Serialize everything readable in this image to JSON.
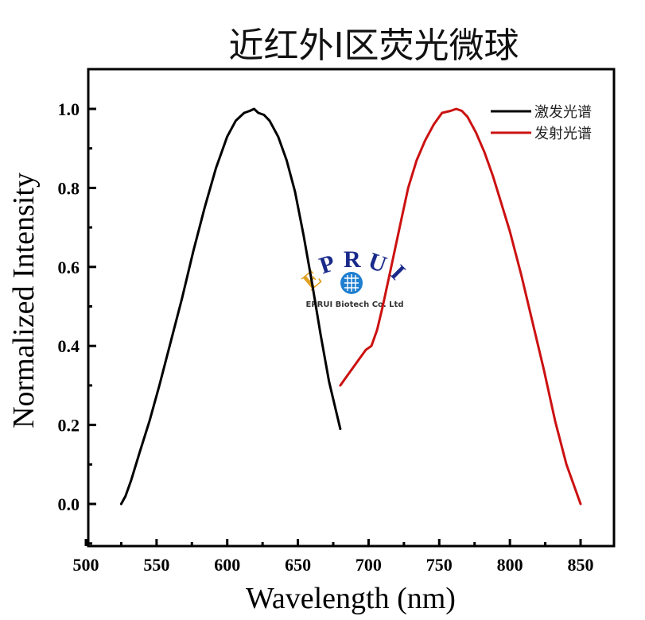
{
  "chart_data": {
    "type": "line",
    "title": "近红外I区荧光微球",
    "xlabel": "Wavelength (nm)",
    "ylabel": "Normalized Intensity",
    "xlim": [
      500,
      880
    ],
    "ylim": [
      -0.1,
      1.1
    ],
    "xticks": [
      500,
      550,
      600,
      650,
      700,
      750,
      800,
      850
    ],
    "xtick_labels": [
      "500",
      "550",
      "600",
      "650",
      "700",
      "750",
      "800",
      "850"
    ],
    "yticks": [
      0.0,
      0.2,
      0.4,
      0.6,
      0.8,
      1.0
    ],
    "ytick_labels": [
      "0.0",
      "0.2",
      "0.4",
      "0.6",
      "0.8",
      "1.0"
    ],
    "grid": false,
    "legend_position": "top-right",
    "series": [
      {
        "name": "激发光谱",
        "color": "#000000",
        "x": [
          525,
          528,
          532,
          538,
          545,
          552,
          560,
          568,
          576,
          584,
          592,
          600,
          606,
          612,
          616,
          619,
          622,
          626,
          630,
          636,
          642,
          648,
          654,
          660,
          666,
          672,
          676,
          680
        ],
        "y": [
          0.0,
          0.02,
          0.06,
          0.13,
          0.21,
          0.3,
          0.41,
          0.52,
          0.64,
          0.75,
          0.85,
          0.93,
          0.97,
          0.99,
          0.995,
          1.0,
          0.99,
          0.985,
          0.97,
          0.93,
          0.87,
          0.79,
          0.68,
          0.56,
          0.43,
          0.31,
          0.25,
          0.19
        ]
      },
      {
        "name": "发射光谱",
        "color": "#cc1111",
        "x": [
          680,
          686,
          692,
          698,
          702,
          706,
          710,
          716,
          722,
          728,
          734,
          740,
          746,
          752,
          758,
          762,
          766,
          770,
          776,
          782,
          788,
          794,
          800,
          808,
          816,
          824,
          832,
          840,
          846,
          850
        ],
        "y": [
          0.3,
          0.33,
          0.36,
          0.39,
          0.4,
          0.44,
          0.5,
          0.6,
          0.7,
          0.8,
          0.87,
          0.92,
          0.96,
          0.99,
          0.995,
          1.0,
          0.995,
          0.98,
          0.94,
          0.89,
          0.83,
          0.76,
          0.69,
          0.58,
          0.46,
          0.34,
          0.21,
          0.1,
          0.04,
          0.0
        ]
      }
    ]
  },
  "watermark": {
    "arc_letters": [
      "E",
      "P",
      "R",
      "U",
      "I"
    ],
    "company": "EPRUI Biotech Co. Ltd"
  }
}
